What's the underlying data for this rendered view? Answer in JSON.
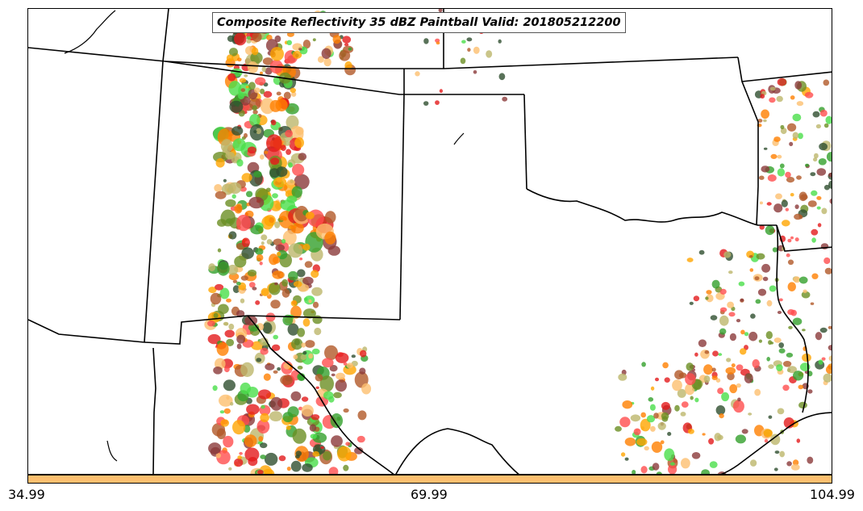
{
  "title": "Composite Reflectivity 35 dBZ Paintball Valid: 201805212200",
  "colorbar": {
    "color": "#fdbf6f",
    "ticks": [
      "34.99",
      "69.99",
      "104.99"
    ]
  },
  "colors": {
    "member_colors": [
      "#e31a1c",
      "#ff7f00",
      "#fdbf6f",
      "#33a02c",
      "#4ade4a",
      "#b15928",
      "#6b8e23",
      "#bdb76b",
      "#ff4d4d",
      "#2f4f2f",
      "#8b3a3a",
      "#ffa500"
    ],
    "borders": "#000000"
  }
}
